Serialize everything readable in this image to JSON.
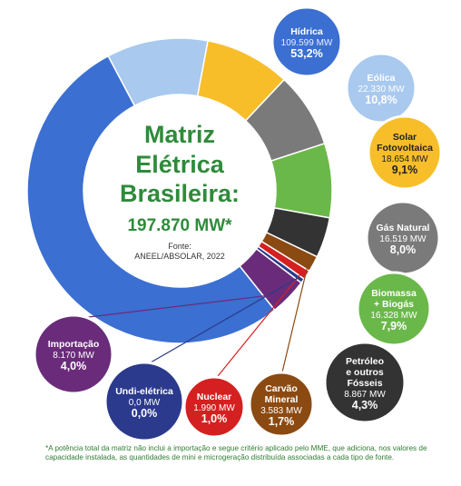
{
  "chart_data": {
    "type": "pie",
    "title_lines": [
      "Matriz",
      "Elétrica",
      "Brasileira:"
    ],
    "total": "197.870 MW*",
    "source_label": "Fonte:",
    "source": "ANEEL/ABSOLAR, 2022",
    "slices": [
      {
        "name": "Hídrica",
        "mw": "109.599 MW",
        "pct_label": "53,2%",
        "value": 53.2,
        "color": "#3b6fd1",
        "bubble_color": "#3b6fd1"
      },
      {
        "name": "Eólica",
        "mw": "22.330 MW",
        "pct_label": "10,8%",
        "value": 10.8,
        "color": "#a9c9ee",
        "bubble_color": "#a9c9ee"
      },
      {
        "name": "Solar Fotovoltaica",
        "mw": "18.654 MW",
        "pct_label": "9,1%",
        "value": 9.1,
        "color": "#f7be2a",
        "bubble_color": "#f7be2a"
      },
      {
        "name": "Gás Natural",
        "mw": "16.519 MW",
        "pct_label": "8,0%",
        "value": 8.0,
        "color": "#7a7a7a",
        "bubble_color": "#7a7a7a"
      },
      {
        "name": "Biomassa + Biogás",
        "mw": "16.328 MW",
        "pct_label": "7,9%",
        "value": 7.9,
        "color": "#6ab84a",
        "bubble_color": "#6ab84a"
      },
      {
        "name": "Petróleo e outros Fósseis",
        "mw": "8.867 MW",
        "pct_label": "4,3%",
        "value": 4.3,
        "color": "#333333",
        "bubble_color": "#333333"
      },
      {
        "name": "Carvão Mineral",
        "mw": "3.583 MW",
        "pct_label": "1,7%",
        "value": 1.7,
        "color": "#8b4a12",
        "bubble_color": "#8b4a12"
      },
      {
        "name": "Nuclear",
        "mw": "1.990 MW",
        "pct_label": "1,0%",
        "value": 1.0,
        "color": "#d42020",
        "bubble_color": "#d42020"
      },
      {
        "name": "Undi-elétrica",
        "mw": "0,0 MW",
        "pct_label": "0,0%",
        "value": 0.0,
        "color": "#2b3a8c",
        "bubble_color": "#2b3a8c"
      },
      {
        "name": "Importação",
        "mw": "8.170 MW",
        "pct_label": "4,0%",
        "value": 4.0,
        "color": "#6a2c7a",
        "bubble_color": "#6a2c7a"
      }
    ],
    "footnote": "*A potência total da matriz não inclui a importação e segue critério aplicado pelo MME, que adiciona, nos valores de capacidade instalada, as quantidades de mini e microgeração distribuída associadas a cada tipo de fonte."
  },
  "colors": {
    "title_green": "#2e8b3a",
    "text_dark": "#333333"
  }
}
